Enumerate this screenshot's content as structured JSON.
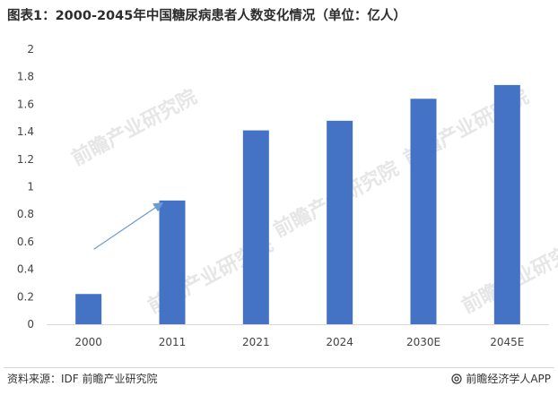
{
  "title": "图表1：2000-2045年中国糖尿病患者人数变化情况（单位：亿人）",
  "chart_data": {
    "type": "bar",
    "categories": [
      "2000",
      "2011",
      "2021",
      "2024",
      "2030E",
      "2045E"
    ],
    "values": [
      0.22,
      0.9,
      1.41,
      1.48,
      1.64,
      1.74
    ],
    "ylim": [
      0,
      2
    ],
    "yticks": [
      "0",
      "0.2",
      "0.4",
      "0.6",
      "0.8",
      "1",
      "1.2",
      "1.4",
      "1.6",
      "1.8",
      "2"
    ],
    "grid": false,
    "legend": "none",
    "bar_color": "#4472c4",
    "annotations": [
      {
        "type": "arrow",
        "from_category": "2000",
        "to_category": "2011",
        "color": "#6a9bd1"
      }
    ]
  },
  "watermark": "前瞻产业研究院",
  "footer": {
    "source": "资料来源：IDF  前瞻产业研究院",
    "brand": "前瞻经济学人APP",
    "brand_icon": "at-icon"
  }
}
